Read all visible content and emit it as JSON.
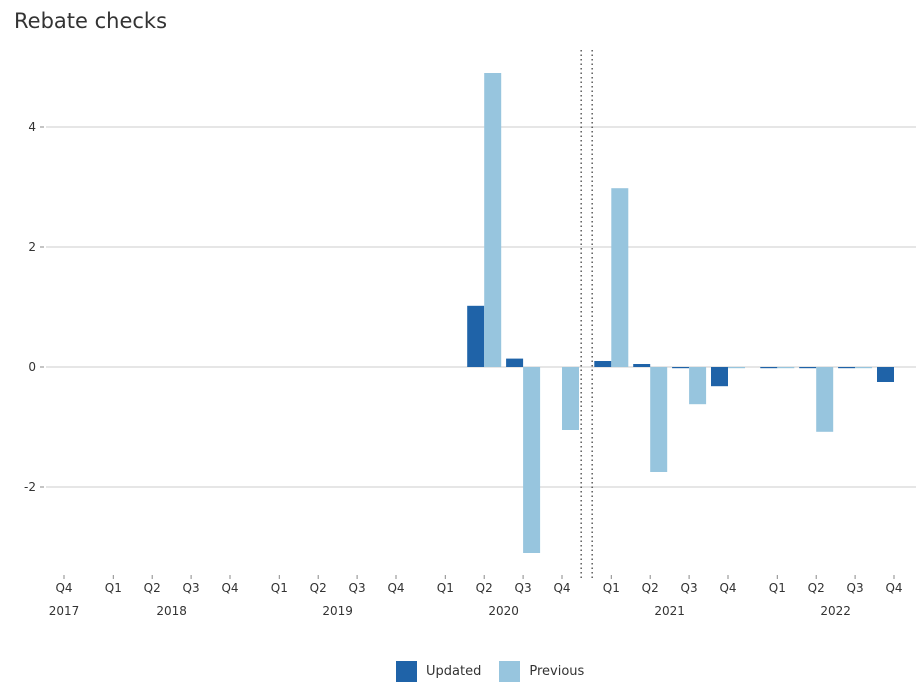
{
  "chart_data": {
    "type": "bar",
    "title": "Rebate checks",
    "xlabel": "",
    "ylabel": "",
    "ylim": [
      -3.5,
      5.3
    ],
    "yticks": [
      -2,
      0,
      2,
      4
    ],
    "ytick_labels": [
      "-2",
      "0",
      "2",
      "4"
    ],
    "grid": true,
    "legend_position": "bottom",
    "divider_after": "2020 Q4",
    "categories": [
      "2017 Q4",
      "2018 Q1",
      "2018 Q2",
      "2018 Q3",
      "2018 Q4",
      "2019 Q1",
      "2019 Q2",
      "2019 Q3",
      "2019 Q4",
      "2020 Q1",
      "2020 Q2",
      "2020 Q3",
      "2020 Q4",
      "2021 Q1",
      "2021 Q2",
      "2021 Q3",
      "2021 Q4",
      "2022 Q1",
      "2022 Q2",
      "2022 Q3",
      "2022 Q4"
    ],
    "quarter_labels": [
      "Q4",
      "Q1",
      "Q2",
      "Q3",
      "Q4",
      "Q1",
      "Q2",
      "Q3",
      "Q4",
      "Q1",
      "Q2",
      "Q3",
      "Q4",
      "Q1",
      "Q2",
      "Q3",
      "Q4",
      "Q1",
      "Q2",
      "Q3",
      "Q4"
    ],
    "year_groups": [
      {
        "label": "2017",
        "start": 0,
        "end": 0
      },
      {
        "label": "2018",
        "start": 1,
        "end": 4
      },
      {
        "label": "2019",
        "start": 5,
        "end": 8
      },
      {
        "label": "2020",
        "start": 9,
        "end": 12
      },
      {
        "label": "2021",
        "start": 13,
        "end": 16
      },
      {
        "label": "2022",
        "start": 17,
        "end": 20
      }
    ],
    "series": [
      {
        "name": "Updated",
        "color": "#1f63a8",
        "values": [
          0,
          0,
          0,
          0,
          0,
          0,
          0,
          0,
          0,
          0,
          1.02,
          0.14,
          0,
          0.1,
          0.05,
          -0.02,
          -0.32,
          -0.02,
          -0.02,
          -0.02,
          -0.25
        ]
      },
      {
        "name": "Previous",
        "color": "#97c5de",
        "values": [
          0,
          0,
          0,
          0,
          0,
          0,
          0,
          0,
          0,
          0,
          4.9,
          -3.1,
          -1.05,
          2.98,
          -1.75,
          -0.62,
          -0.02,
          -0.02,
          -1.08,
          -0.02,
          0
        ]
      }
    ]
  }
}
